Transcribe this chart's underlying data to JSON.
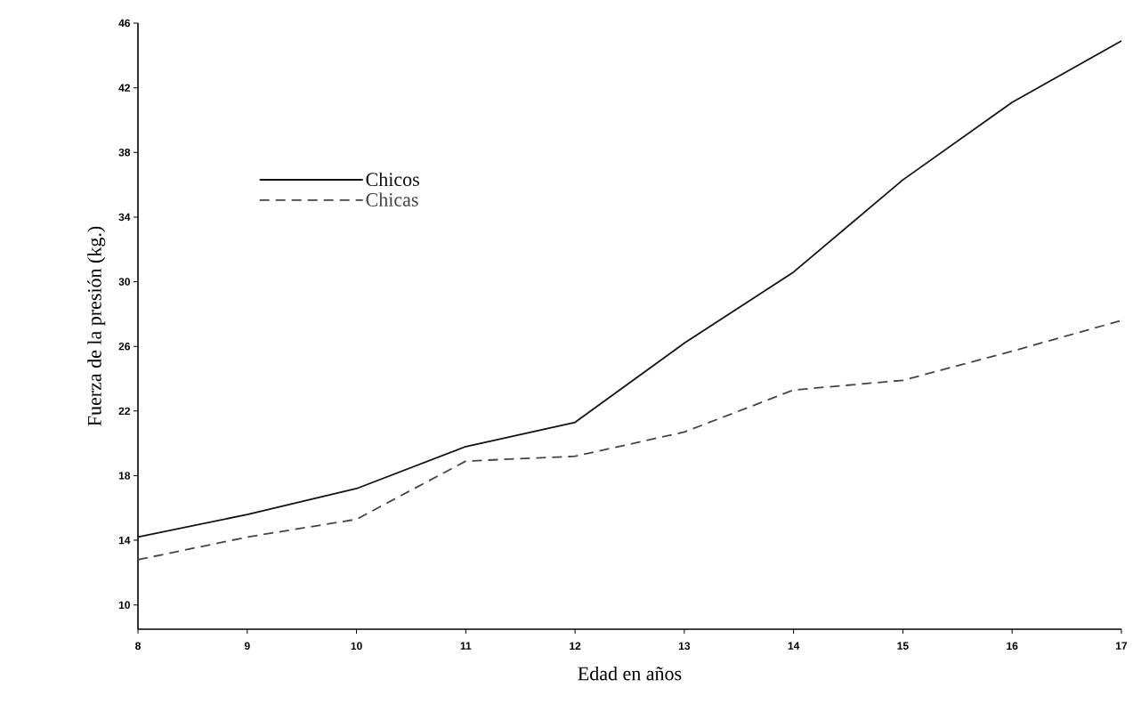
{
  "chart_data": {
    "type": "line",
    "xlabel": "Edad en años",
    "ylabel": "Fuerza de la presión (kg.)",
    "x": [
      8,
      9,
      10,
      11,
      12,
      13,
      14,
      15,
      16,
      17
    ],
    "series": [
      {
        "name": "Chicos",
        "color": "#111111",
        "line_style": "solid",
        "values": [
          14.2,
          15.6,
          17.2,
          19.8,
          21.3,
          26.2,
          30.6,
          36.3,
          41.1,
          44.9
        ]
      },
      {
        "name": "Chicas",
        "color": "#444444",
        "line_style": "dashed",
        "values": [
          12.8,
          14.2,
          15.3,
          18.9,
          19.2,
          20.7,
          23.3,
          23.9,
          25.7,
          27.6
        ]
      }
    ],
    "xlim": [
      8,
      17
    ],
    "ylim": [
      8.5,
      46
    ],
    "xticks": [
      8,
      9,
      10,
      11,
      12,
      13,
      14,
      15,
      16,
      17
    ],
    "yticks": [
      10,
      14,
      18,
      22,
      26,
      30,
      34,
      38,
      42,
      46
    ],
    "grid": false,
    "legend": "top left",
    "marker": "none"
  }
}
